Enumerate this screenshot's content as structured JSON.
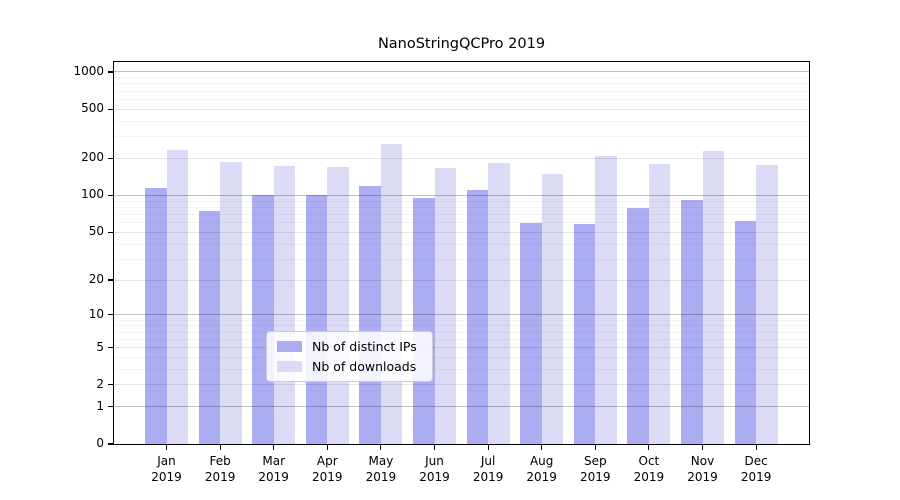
{
  "title": "NanoStringQCPro 2019",
  "chart_data": {
    "type": "bar",
    "title": "NanoStringQCPro 2019",
    "categories": [
      "Jan 2019",
      "Feb 2019",
      "Mar 2019",
      "Apr 2019",
      "May 2019",
      "Jun 2019",
      "Jul 2019",
      "Aug 2019",
      "Sep 2019",
      "Oct 2019",
      "Nov 2019",
      "Dec 2019"
    ],
    "series": [
      {
        "name": "Nb of distinct IPs",
        "color": "#acacf2",
        "values": [
          115,
          75,
          100,
          100,
          120,
          95,
          110,
          60,
          58,
          79,
          91,
          62
        ]
      },
      {
        "name": "Nb of downloads",
        "color": "#dbdbf6",
        "values": [
          233,
          187,
          175,
          170,
          262,
          168,
          184,
          150,
          210,
          180,
          228,
          178
        ]
      }
    ],
    "xlabel": "",
    "ylabel": "",
    "yscale": "log10(1+y)",
    "ylim": [
      0,
      1250
    ],
    "yticks": [
      0,
      1,
      2,
      5,
      10,
      20,
      50,
      100,
      200,
      500,
      1000
    ],
    "grid": "horizontal, log minor + major, drawn over bars",
    "legend_position": "lower center inside plot",
    "colors": {
      "grid_major": "rgba(0,0,0,0.24)",
      "grid_mid": "rgba(0,0,0,0.10)",
      "grid_minor": "rgba(0,0,0,0.045)",
      "axis": "#000000",
      "background": "#ffffff"
    }
  }
}
